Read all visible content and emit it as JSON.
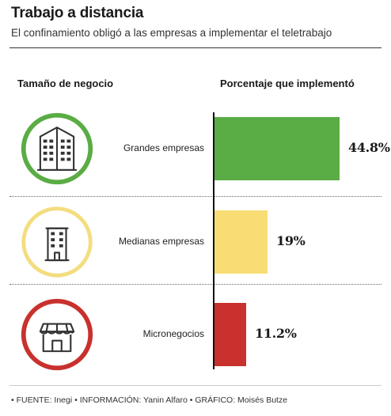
{
  "header": {
    "title": "Trabajo a distancia",
    "subtitle": "El confinamiento obligó a las empresas a implementar el teletrabajo"
  },
  "columns": {
    "left": "Tamaño de negocio",
    "right": "Porcentaje que implementó"
  },
  "footer": {
    "text": "• FUENTE: Inegi • INFORMACIÓN: Yanin Alfaro • GRÁFICO: Moisés Butze"
  },
  "chart_data": {
    "type": "bar",
    "orientation": "horizontal",
    "title": "Trabajo a distancia",
    "subtitle": "El confinamiento obligó a las empresas a implementar el teletrabajo",
    "categories": [
      "Grandes empresas",
      "Medianas empresas",
      "Micronegocios"
    ],
    "values": [
      44.8,
      19,
      11.2
    ],
    "value_labels": [
      "44.8%",
      "19%",
      "11.2%"
    ],
    "unit": "%",
    "colors": [
      "#5aac44",
      "#f8dd74",
      "#c8312d"
    ],
    "icons": [
      "office-tower-icon",
      "apartment-building-icon",
      "shop-storefront-icon"
    ],
    "grid": false,
    "legend": "none"
  }
}
